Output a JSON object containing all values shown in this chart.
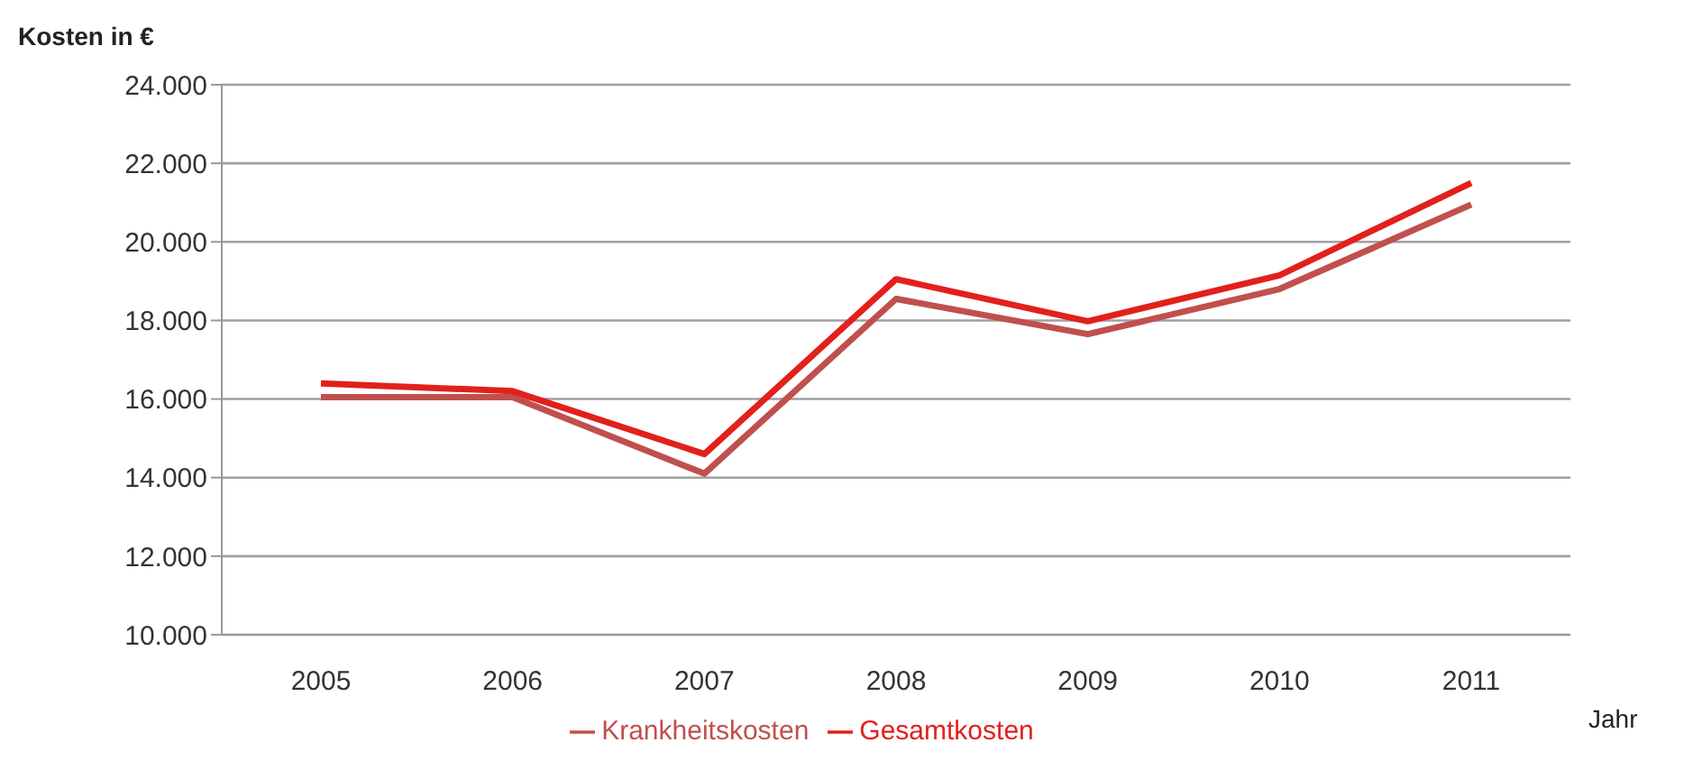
{
  "chart_data": {
    "type": "line",
    "ylabel": "Kosten in €",
    "xlabel": "Jahr",
    "categories": [
      "2005",
      "2006",
      "2007",
      "2008",
      "2009",
      "2010",
      "2011"
    ],
    "series": [
      {
        "name": "Krankheitskosten",
        "color": "#c0504d",
        "values": [
          16050,
          16050,
          14100,
          18550,
          17650,
          18800,
          20950
        ]
      },
      {
        "name": "Gesamtkosten",
        "color": "#e2201c",
        "values": [
          16400,
          16200,
          14600,
          19050,
          17980,
          19150,
          21500
        ]
      }
    ],
    "ylim": [
      10000,
      24000
    ],
    "yticks": [
      {
        "value": 10000,
        "label": "10.000"
      },
      {
        "value": 12000,
        "label": "12.000"
      },
      {
        "value": 14000,
        "label": "14.000"
      },
      {
        "value": 16000,
        "label": "16.000"
      },
      {
        "value": 18000,
        "label": "18.000"
      },
      {
        "value": 20000,
        "label": "20.000"
      },
      {
        "value": 22000,
        "label": "22.000"
      },
      {
        "value": 24000,
        "label": "24.000"
      }
    ],
    "grid": "y",
    "legend": "bottom",
    "marker": "none",
    "line_style": "solid"
  }
}
